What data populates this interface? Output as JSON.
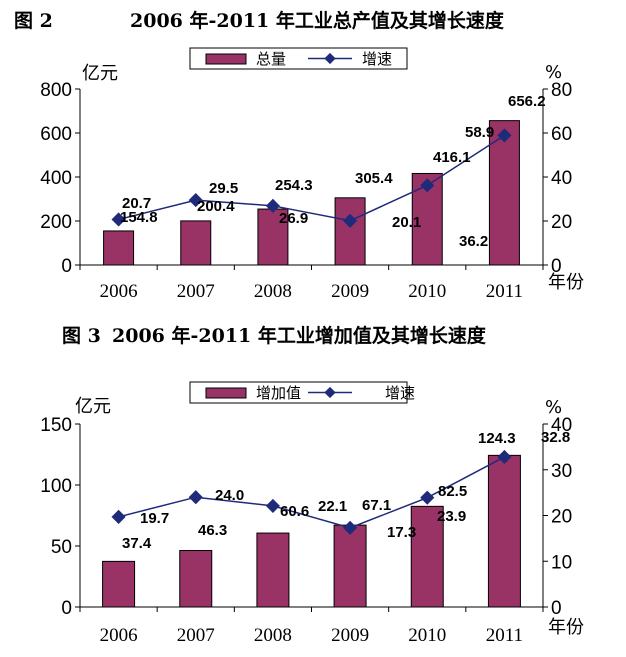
{
  "chart_data": [
    {
      "type": "bar+line",
      "figure_label": "图 2",
      "title": "2006 年-2011 年工业总产值及其增长速度",
      "categories": [
        "2006",
        "2007",
        "2008",
        "2009",
        "2010",
        "2011"
      ],
      "series": [
        {
          "name": "总量",
          "type": "bar",
          "axis": "left",
          "values": [
            154.8,
            200.4,
            254.3,
            305.4,
            416.1,
            656.2
          ],
          "color": "#993366"
        },
        {
          "name": "增速",
          "type": "line",
          "axis": "right",
          "values": [
            20.7,
            29.5,
            26.9,
            20.1,
            36.2,
            58.9
          ],
          "color": "#1F2A7A"
        }
      ],
      "ylabel_left": "亿元",
      "ylabel_right": "%",
      "xlabel": "年份",
      "ylim_left": [
        0,
        800
      ],
      "yticks_left": [
        "0",
        "200",
        "400",
        "600",
        "800"
      ],
      "ylim_right": [
        0,
        80
      ],
      "yticks_right": [
        "0",
        "20",
        "40",
        "60",
        "80"
      ],
      "legend_position": "top-center",
      "grid": false
    },
    {
      "type": "bar+line",
      "figure_label": "图 3",
      "title": "2006 年-2011 年工业增加值及其增长速度",
      "categories": [
        "2006",
        "2007",
        "2008",
        "2009",
        "2010",
        "2011"
      ],
      "series": [
        {
          "name": "增加值",
          "type": "bar",
          "axis": "left",
          "values": [
            37.4,
            46.3,
            60.6,
            67.1,
            82.5,
            124.3
          ],
          "color": "#993366"
        },
        {
          "name": "增速",
          "type": "line",
          "axis": "right",
          "values": [
            19.7,
            24.0,
            22.1,
            17.3,
            23.9,
            32.8
          ],
          "color": "#1F2A7A"
        }
      ],
      "ylabel_left": "亿元",
      "ylabel_right": "%",
      "xlabel": "年份",
      "ylim_left": [
        0,
        150
      ],
      "yticks_left": [
        "0",
        "50",
        "100",
        "150"
      ],
      "ylim_right": [
        0,
        40
      ],
      "yticks_right": [
        "0",
        "10",
        "20",
        "30",
        "40"
      ],
      "legend_position": "top-center",
      "grid": false
    }
  ]
}
